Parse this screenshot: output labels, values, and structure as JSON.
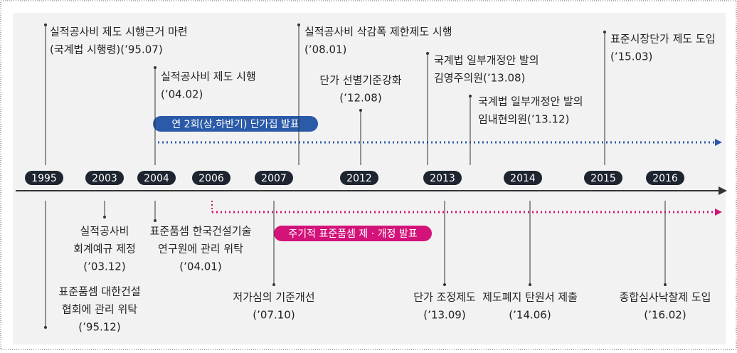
{
  "years": [
    "1995",
    "2003",
    "2004",
    "2006",
    "2007",
    "2012",
    "2013",
    "2014",
    "2015",
    "2016"
  ],
  "banners": [
    "연 2회(상,하반기) 단가집 발표",
    "주기적 표준품셈 제 · 개정 발표"
  ],
  "events_above": [
    {
      "lines": [
        "실적공사비 제도 시행근거 마련",
        "(국계법 시행령)(’95.07)"
      ]
    },
    {
      "lines": [
        "실적공사비 제도 시행",
        "(’04.02)"
      ]
    },
    {
      "lines": [
        "실적공사비 삭감폭 제한제도 시행",
        "(’08.01)"
      ]
    },
    {
      "lines": [
        "단가 선별기준강화",
        "(’12.08)"
      ]
    },
    {
      "lines": [
        "국계법 일부개정안 발의",
        "김영주의원(’13.08)"
      ]
    },
    {
      "lines": [
        "국계법 일부개정안 발의",
        "임내현의원(’13.12)"
      ]
    },
    {
      "lines": [
        "표준시장단가 제도 도입",
        "(’15.03)"
      ]
    }
  ],
  "events_below": [
    {
      "lines": [
        "실적공사비",
        "회계예규 제정",
        "(’03.12)"
      ]
    },
    {
      "lines": [
        "표준품셈 한국건설기술",
        "연구원에 관리 위탁",
        "(’04.01)"
      ]
    },
    {
      "lines": [
        "표준품셈 대한건설",
        "협회에 관리 위탁",
        "(’95.12)"
      ]
    },
    {
      "lines": [
        "저가심의 기준개선",
        "(’07.10)"
      ]
    },
    {
      "lines": [
        "단가 조정제도",
        "(’13.09)"
      ]
    },
    {
      "lines": [
        "제도폐지 탄원서 제출",
        "(’14.06)"
      ]
    },
    {
      "lines": [
        "종합심사낙찰제 도입",
        "(’16.02)"
      ]
    }
  ]
}
